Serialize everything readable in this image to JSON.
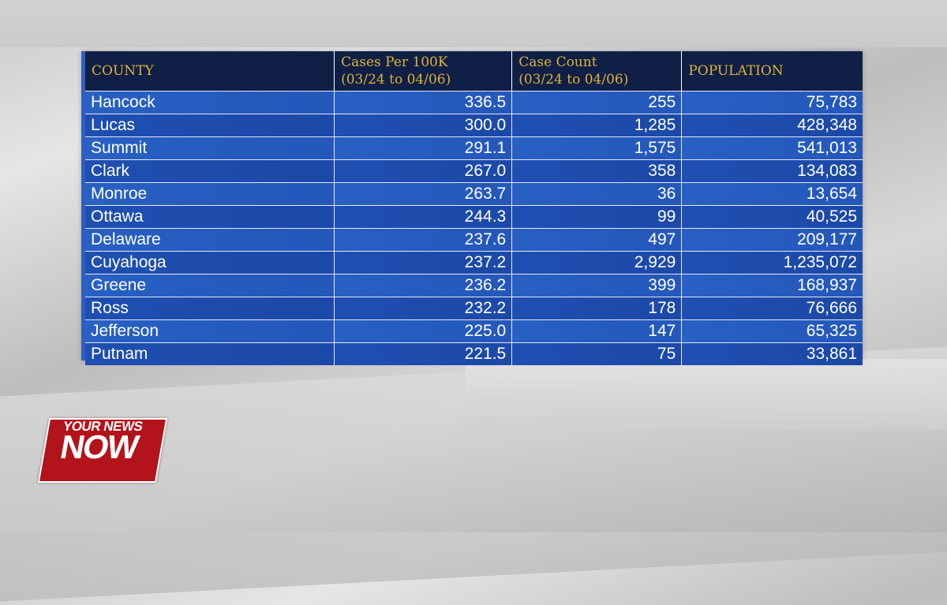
{
  "table": {
    "headers": {
      "county": "COUNTY",
      "cases_per_100k_line1": "Cases Per 100K",
      "cases_per_100k_line2": "(03/24 to 04/06)",
      "case_count_line1": "Case Count",
      "case_count_line2": "(03/24 to 04/06)",
      "population": "POPULATION"
    },
    "rows": [
      {
        "county": "Hancock",
        "cases_per_100k": "336.5",
        "case_count": "255",
        "population": "75,783"
      },
      {
        "county": "Lucas",
        "cases_per_100k": "300.0",
        "case_count": "1,285",
        "population": "428,348"
      },
      {
        "county": "Summit",
        "cases_per_100k": "291.1",
        "case_count": "1,575",
        "population": "541,013"
      },
      {
        "county": "Clark",
        "cases_per_100k": "267.0",
        "case_count": "358",
        "population": "134,083"
      },
      {
        "county": "Monroe",
        "cases_per_100k": "263.7",
        "case_count": "36",
        "population": "13,654"
      },
      {
        "county": "Ottawa",
        "cases_per_100k": "244.3",
        "case_count": "99",
        "population": "40,525"
      },
      {
        "county": "Delaware",
        "cases_per_100k": "237.6",
        "case_count": "497",
        "population": "209,177"
      },
      {
        "county": "Cuyahoga",
        "cases_per_100k": "237.2",
        "case_count": "2,929",
        "population": "1,235,072"
      },
      {
        "county": "Greene",
        "cases_per_100k": "236.2",
        "case_count": "399",
        "population": "168,937"
      },
      {
        "county": "Ross",
        "cases_per_100k": "232.2",
        "case_count": "178",
        "population": "76,666"
      },
      {
        "county": "Jefferson",
        "cases_per_100k": "225.0",
        "case_count": "147",
        "population": "65,325"
      },
      {
        "county": "Putnam",
        "cases_per_100k": "221.5",
        "case_count": "75",
        "population": "33,861"
      }
    ]
  },
  "logo": {
    "line1": "YOUR NEWS",
    "line2": "NOW"
  },
  "colors": {
    "header_bg": "#0f1f45",
    "header_text": "#e0b13c",
    "row_blue": "#2457ba",
    "logo_red": "#b3131b"
  }
}
